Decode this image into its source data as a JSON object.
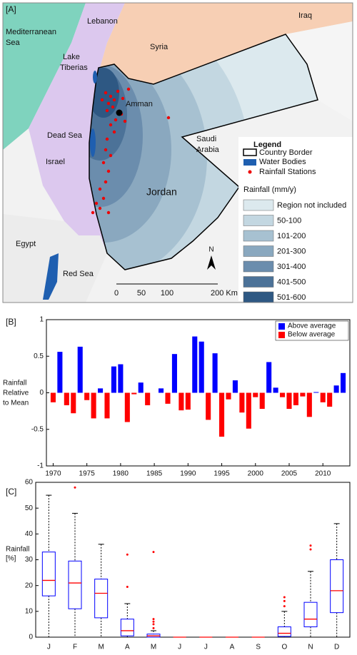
{
  "map": {
    "panel_label": "[A]",
    "places": {
      "mediterranean": [
        "Mediterranean",
        "Sea"
      ],
      "lebanon": "Lebanon",
      "syria": "Syria",
      "iraq": "Iraq",
      "tiberias": [
        "Lake",
        "Tiberias"
      ],
      "amman": "Amman",
      "dead_sea": "Dead Sea",
      "israel": "Israel",
      "saudi": [
        "Saudi",
        "Arabia"
      ],
      "jordan": "Jordan",
      "egypt": "Egypt",
      "red_sea": "Red Sea"
    },
    "legend": {
      "title": "Legend",
      "items": [
        "Country Border",
        "Water Bodies",
        "Rainfall Stations"
      ],
      "rainfall_title": "Rainfall (mm/y)",
      "classes": [
        "Region not included",
        "50-100",
        "101-200",
        "201-300",
        "301-400",
        "401-500",
        "501-600"
      ],
      "class_colors": [
        "#dce9ee",
        "#c3d7e1",
        "#a7c1d1",
        "#8aa8bf",
        "#6b8dad",
        "#4c7298",
        "#2e5883"
      ]
    },
    "scale_bar": [
      "0",
      "50",
      "100",
      "200 Km"
    ],
    "north": "N"
  },
  "chart_data": [
    {
      "type": "bar",
      "panel_label": "[B]",
      "ylabel": [
        "Rainfall",
        "Relative",
        "to Mean"
      ],
      "x": [
        1970,
        1971,
        1972,
        1973,
        1974,
        1975,
        1976,
        1977,
        1978,
        1979,
        1980,
        1981,
        1982,
        1983,
        1984,
        1985,
        1986,
        1987,
        1988,
        1989,
        1990,
        1991,
        1992,
        1993,
        1994,
        1995,
        1996,
        1997,
        1998,
        1999,
        2000,
        2001,
        2002,
        2003,
        2004,
        2005,
        2006,
        2007,
        2008,
        2009,
        2010,
        2011,
        2012,
        2013
      ],
      "series": [
        {
          "name": "Above average",
          "color": "#0000ff",
          "values": [
            null,
            0.56,
            null,
            null,
            0.63,
            null,
            null,
            0.06,
            null,
            0.36,
            0.39,
            null,
            null,
            0.14,
            null,
            null,
            0.06,
            null,
            0.53,
            null,
            null,
            0.77,
            0.7,
            null,
            0.54,
            null,
            null,
            0.17,
            null,
            null,
            null,
            null,
            0.42,
            0.07,
            null,
            null,
            null,
            null,
            null,
            0.01,
            null,
            null,
            0.1,
            0.27
          ]
        },
        {
          "name": "Below average",
          "color": "#ff0000",
          "values": [
            -0.13,
            null,
            -0.17,
            -0.28,
            null,
            -0.1,
            -0.35,
            null,
            -0.35,
            null,
            null,
            -0.4,
            -0.02,
            null,
            -0.17,
            null,
            null,
            -0.15,
            null,
            -0.24,
            -0.23,
            null,
            null,
            -0.37,
            null,
            -0.6,
            -0.09,
            null,
            -0.27,
            -0.49,
            -0.06,
            -0.22,
            null,
            null,
            -0.06,
            -0.22,
            -0.17,
            -0.05,
            -0.33,
            null,
            -0.13,
            -0.19,
            null,
            null
          ]
        }
      ],
      "xlim": [
        1969,
        2014
      ],
      "xticks": [
        1970,
        1975,
        1980,
        1985,
        1990,
        1995,
        2000,
        2005,
        2010
      ],
      "ylim": [
        -1,
        1
      ],
      "yticks": [
        -1,
        -0.5,
        0,
        0.5,
        1
      ],
      "legend": "upper right"
    },
    {
      "type": "box",
      "panel_label": "[C]",
      "ylabel": [
        "Rainfall",
        "[%]"
      ],
      "categories": [
        "J",
        "F",
        "M",
        "A",
        "M",
        "J",
        "J",
        "A",
        "S",
        "O",
        "N",
        "D"
      ],
      "boxes": [
        {
          "min": 0,
          "q1": 16,
          "median": 22,
          "q3": 33,
          "max": 55,
          "outliers": []
        },
        {
          "min": 0,
          "q1": 11,
          "median": 21,
          "q3": 29.5,
          "max": 48,
          "outliers": [
            58
          ]
        },
        {
          "min": 0,
          "q1": 7.5,
          "median": 17,
          "q3": 22.5,
          "max": 36,
          "outliers": []
        },
        {
          "min": 0,
          "q1": 0.5,
          "median": 2.5,
          "q3": 7,
          "max": 13,
          "outliers": [
            19.5,
            32
          ]
        },
        {
          "min": 0,
          "q1": 0,
          "median": 0.5,
          "q3": 1.2,
          "max": 2.5,
          "outliers": [
            3.5,
            5,
            6,
            7,
            33
          ]
        },
        {
          "min": 0,
          "q1": 0,
          "median": 0,
          "q3": 0,
          "max": 0,
          "outliers": []
        },
        {
          "min": 0,
          "q1": 0,
          "median": 0,
          "q3": 0,
          "max": 0,
          "outliers": []
        },
        {
          "min": 0,
          "q1": 0,
          "median": 0,
          "q3": 0,
          "max": 0,
          "outliers": []
        },
        {
          "min": 0,
          "q1": 0,
          "median": 0,
          "q3": 0,
          "max": 0,
          "outliers": []
        },
        {
          "min": 0,
          "q1": 0.3,
          "median": 1.5,
          "q3": 4,
          "max": 10,
          "outliers": [
            12,
            14,
            15.5
          ]
        },
        {
          "min": 0,
          "q1": 4,
          "median": 7,
          "q3": 13.5,
          "max": 25.5,
          "outliers": [
            34,
            35.5
          ]
        },
        {
          "min": 0,
          "q1": 9.5,
          "median": 18,
          "q3": 30,
          "max": 44,
          "outliers": []
        }
      ],
      "box_color": "#0000ff",
      "median_color": "#ff0000",
      "ylim": [
        0,
        60
      ],
      "yticks": [
        0,
        10,
        20,
        30,
        40,
        50,
        60
      ]
    }
  ]
}
